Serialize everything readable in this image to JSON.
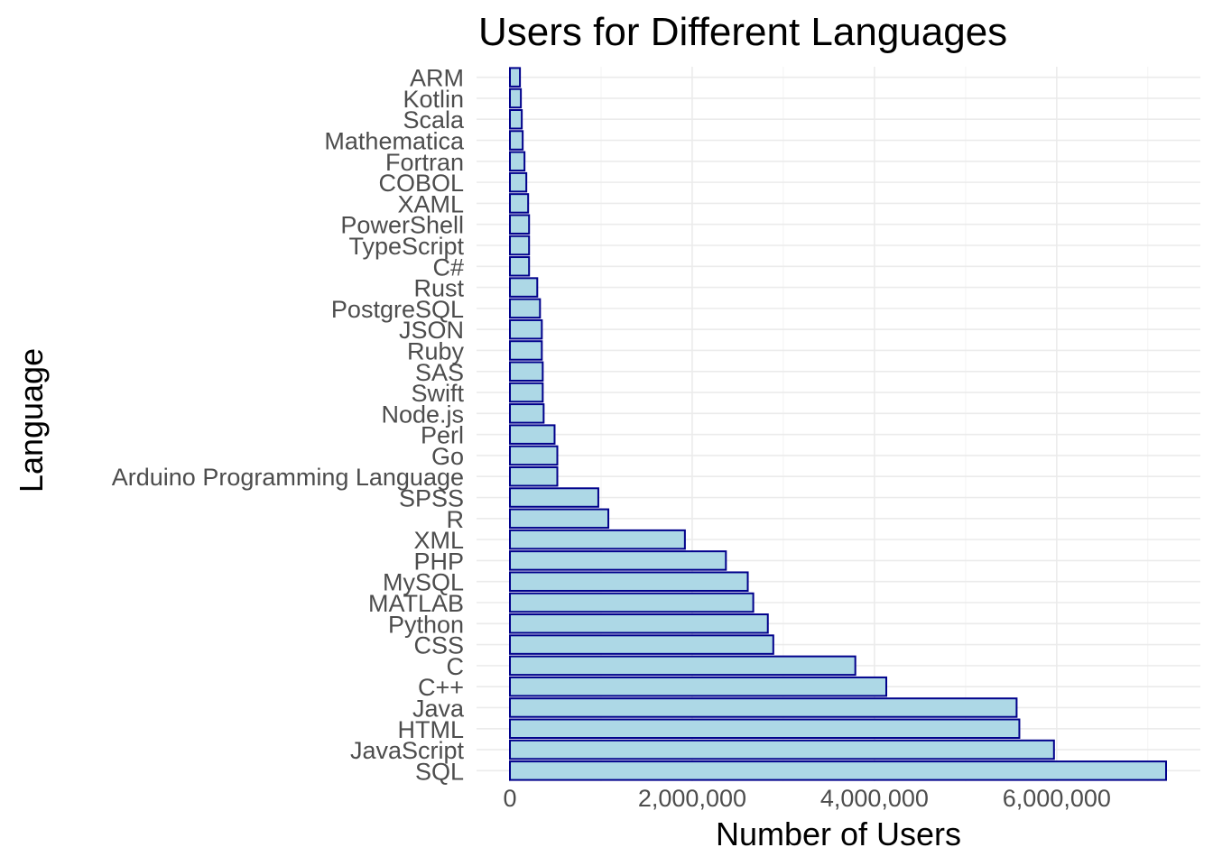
{
  "chart_data": {
    "type": "bar",
    "orientation": "horizontal",
    "title": "Users for Different Languages",
    "xlabel": "Number of Users",
    "ylabel": "Language",
    "xlim": [
      0,
      7200000
    ],
    "x_ticks": [
      0,
      2000000,
      4000000,
      6000000
    ],
    "x_tick_labels": [
      "0",
      "2,000,000",
      "4,000,000",
      "6,000,000"
    ],
    "grid": true,
    "legend": "none",
    "bar_fill": "#add8e6",
    "bar_stroke": "#00008b",
    "categories": [
      "SQL",
      "JavaScript",
      "HTML",
      "Java",
      "C++",
      "C",
      "CSS",
      "Python",
      "MATLAB",
      "MySQL",
      "PHP",
      "XML",
      "R",
      "SPSS",
      "Arduino Programming Language",
      "Go",
      "Perl",
      "Node.js",
      "Swift",
      "SAS",
      "Ruby",
      "JSON",
      "PostgreSQL",
      "Rust",
      "C#",
      "TypeScript",
      "PowerShell",
      "XAML",
      "COBOL",
      "Fortran",
      "Mathematica",
      "Scala",
      "Kotlin",
      "ARM"
    ],
    "values": [
      7200000,
      5970000,
      5590000,
      5560000,
      4130000,
      3790000,
      2890000,
      2830000,
      2670000,
      2610000,
      2370000,
      1920000,
      1080000,
      970000,
      520000,
      520000,
      490000,
      370000,
      360000,
      360000,
      350000,
      350000,
      330000,
      300000,
      210000,
      210000,
      210000,
      200000,
      180000,
      160000,
      140000,
      130000,
      120000,
      110000
    ]
  }
}
